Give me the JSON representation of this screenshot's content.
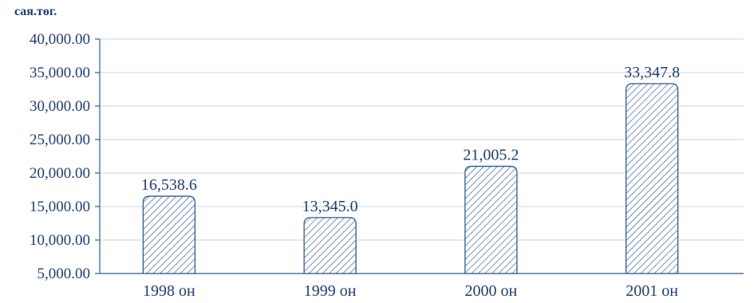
{
  "chart_data": {
    "type": "bar",
    "title": "",
    "unit_label": "сая.төг.",
    "xlabel": "",
    "ylabel": "",
    "categories": [
      "1998 он",
      "1999 он",
      "2000 он",
      "2001 он"
    ],
    "values": [
      16538.6,
      13345.0,
      21005.2,
      33347.8
    ],
    "value_labels": [
      "16,538.6",
      "13,345.0",
      "21,005.2",
      "33,347.8"
    ],
    "ylim": [
      5000,
      40000
    ],
    "yticks": [
      5000,
      10000,
      15000,
      20000,
      25000,
      30000,
      35000,
      40000
    ],
    "ytick_labels": [
      "5,000.00",
      "10,000.00",
      "15,000.00",
      "20,000.00",
      "25,000.00",
      "30,000.00",
      "35,000.00",
      "40,000.00"
    ],
    "grid": true,
    "bar_pattern": "hatched",
    "colors": {
      "bar_stroke": "#2f5a8e",
      "hatch": "#2f5a8e",
      "axis": "#2f5a8e",
      "grid": "#c8d4e4",
      "text": "#1f3d6e"
    }
  }
}
